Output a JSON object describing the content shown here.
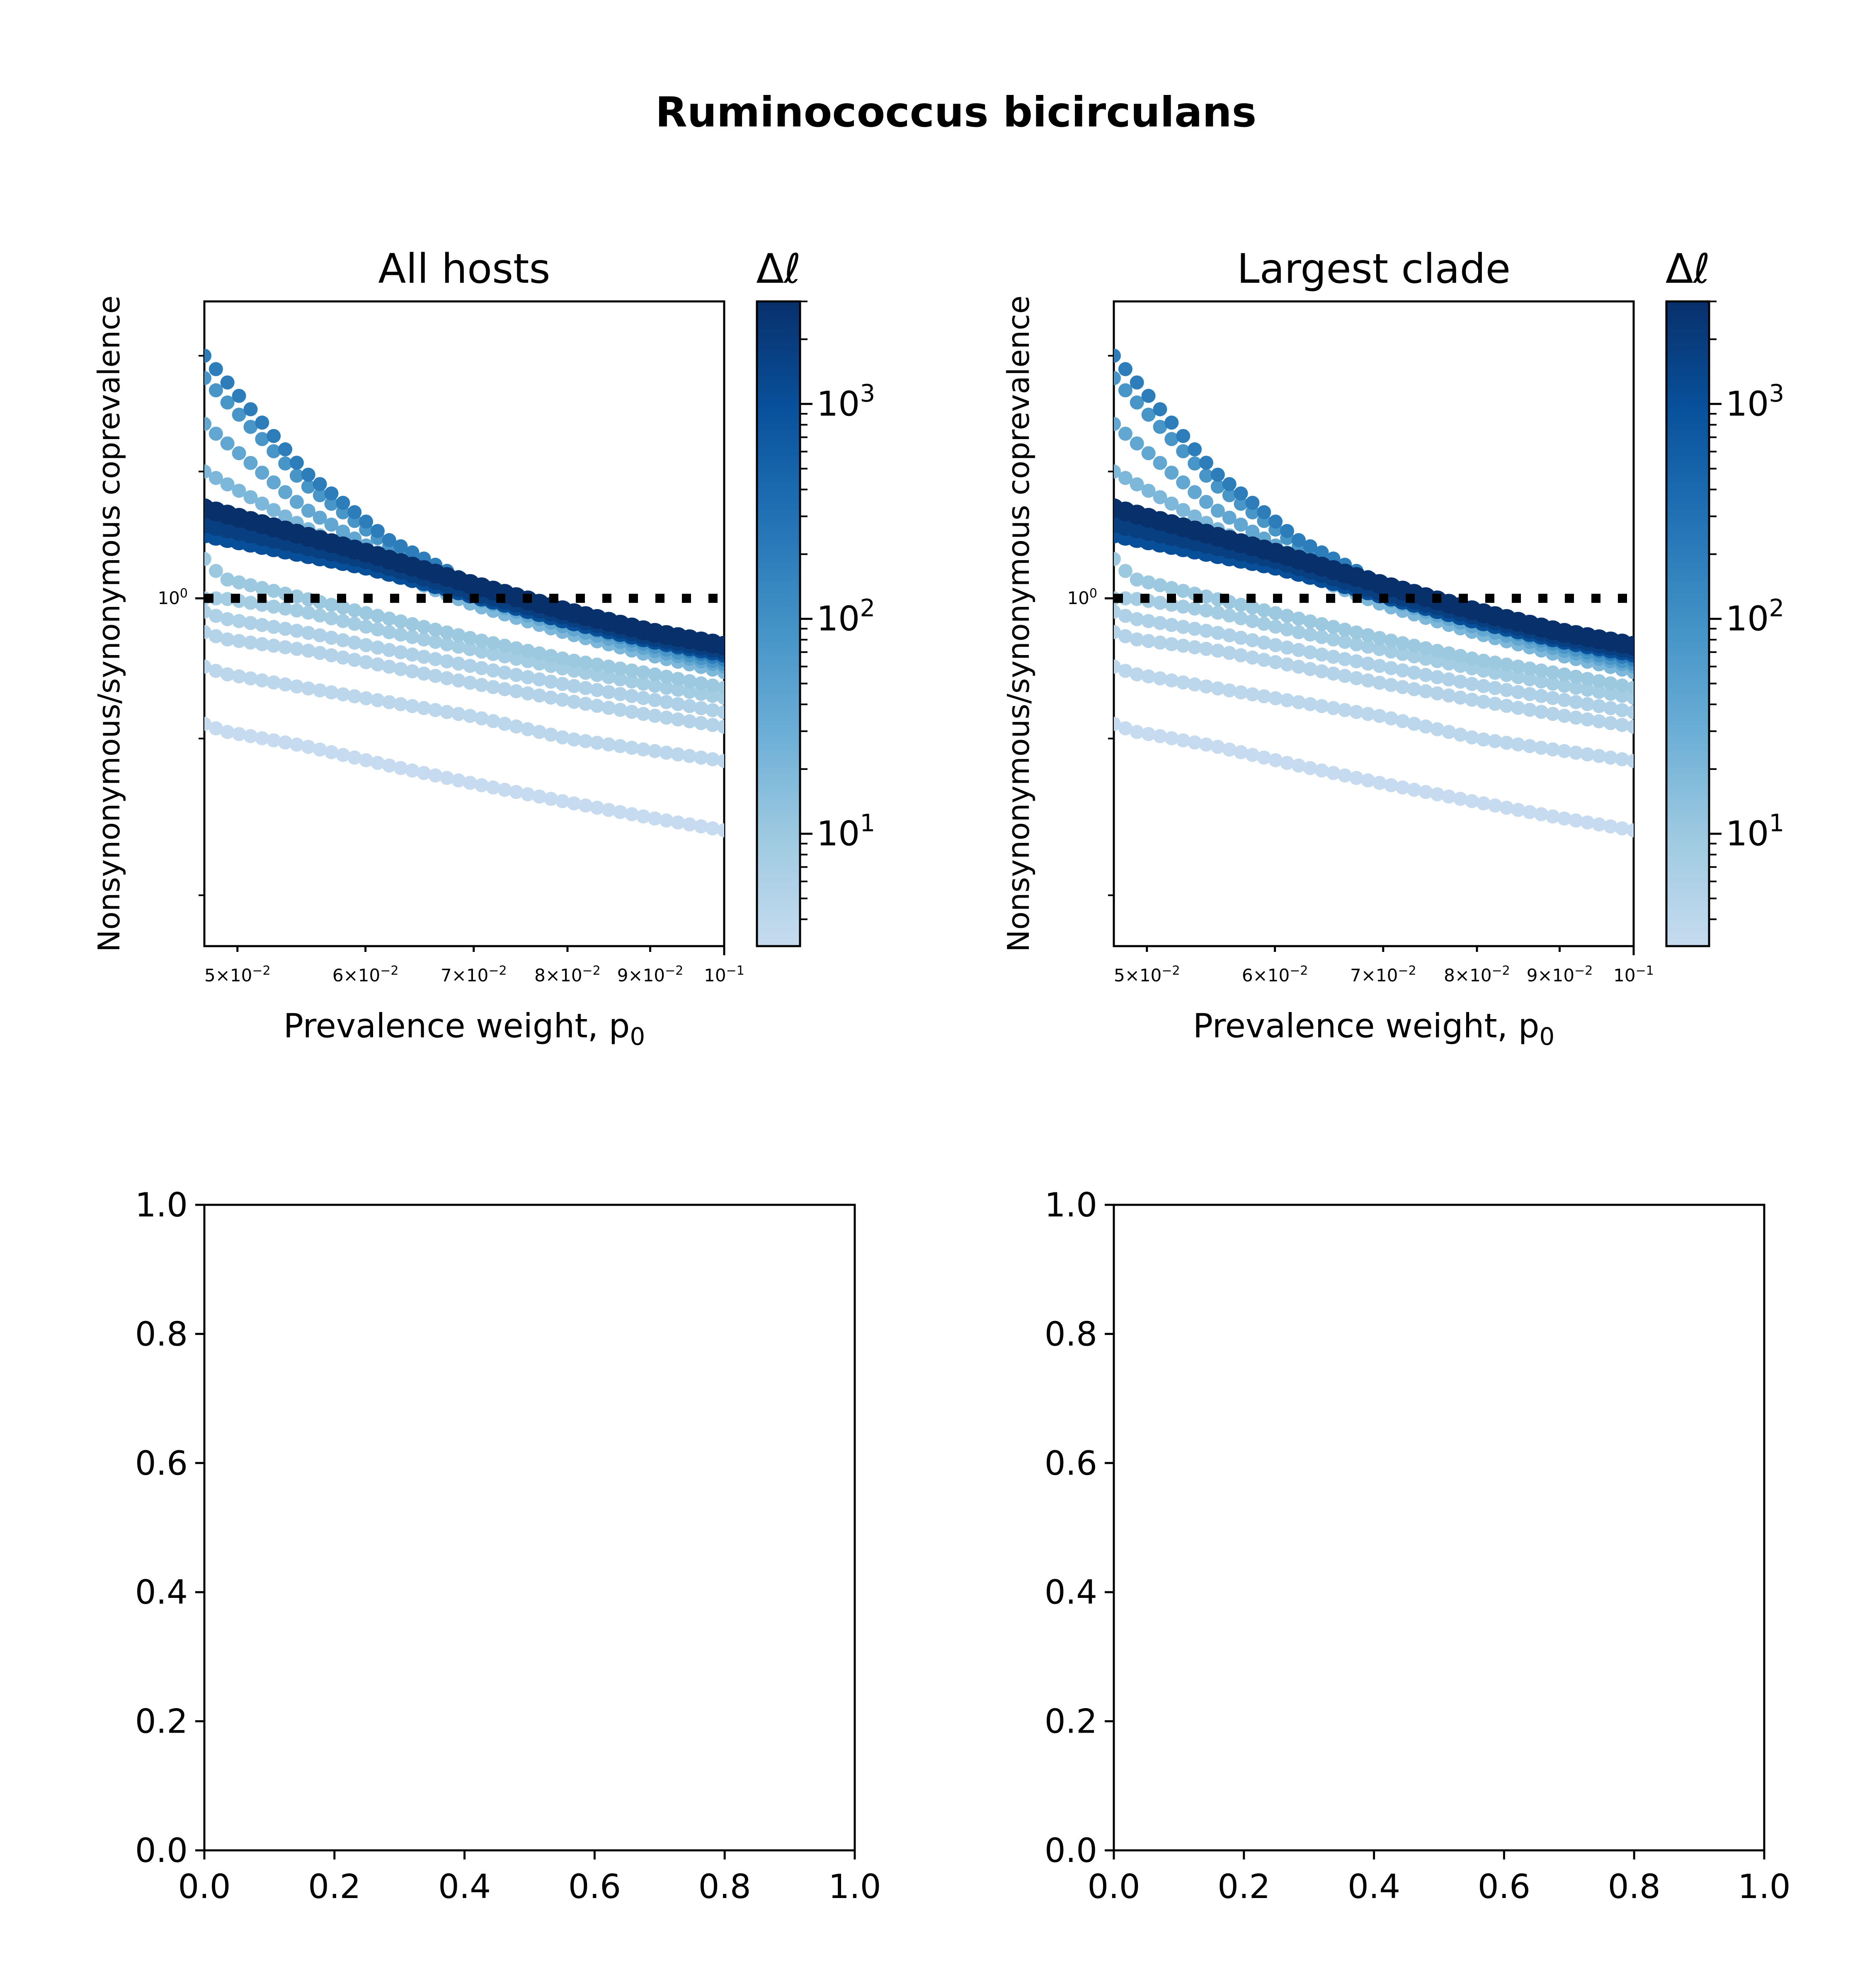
{
  "figure": {
    "suptitle": "Ruminococcus bicirculans"
  },
  "chart_data": [
    {
      "type": "scatter",
      "title": "All hosts",
      "xlabel": "Prevalence weight, p",
      "xlabel_sub": "0",
      "ylabel": "Nonsynonymous/synonymous coprevalence",
      "xscale": "log",
      "yscale": "log",
      "xlim": [
        0.0477,
        0.1
      ],
      "ylim": [
        0.77,
        1.25
      ],
      "x_ticks": [
        {
          "mant": "5",
          "exp": "−2"
        },
        {
          "mant": "6",
          "exp": "−2"
        },
        {
          "mant": "7",
          "exp": "−2"
        },
        {
          "mant": "8",
          "exp": "−2"
        },
        {
          "mant": "9",
          "exp": "−2"
        },
        {
          "mant": "",
          "exp": "−1"
        }
      ],
      "y_ticks": [
        {
          "base": "10",
          "exp": "0"
        }
      ],
      "reference_line": {
        "y": 1.0,
        "style": "dotted",
        "color": "#000000"
      },
      "colorbar": {
        "label": "Δℓ",
        "scale": "log",
        "range": [
          3,
          3000
        ],
        "cmap": [
          "#c6dbef",
          "#9ecae1",
          "#6baed6",
          "#4292c6",
          "#2171b5",
          "#08519c",
          "#08306b"
        ],
        "ticks": [
          {
            "base": "10",
            "exp": "1"
          },
          {
            "base": "10",
            "exp": "2"
          },
          {
            "base": "10",
            "exp": "3"
          }
        ]
      },
      "series": [
        {
          "delta": 3000,
          "points": [
            [
              0.0477,
              1.07
            ],
            [
              0.06,
              1.035
            ],
            [
              0.07,
              1.01
            ],
            [
              0.08,
              0.99
            ],
            [
              0.09,
              0.975
            ],
            [
              0.1,
              0.965
            ]
          ]
        },
        {
          "delta": 1800,
          "points": [
            [
              0.0477,
              1.058
            ],
            [
              0.06,
              1.03
            ],
            [
              0.07,
              1.005
            ],
            [
              0.08,
              0.987
            ],
            [
              0.09,
              0.972
            ],
            [
              0.1,
              0.962
            ]
          ]
        },
        {
          "delta": 1000,
          "points": [
            [
              0.0477,
              1.05
            ],
            [
              0.06,
              1.025
            ],
            [
              0.07,
              1.003
            ],
            [
              0.08,
              0.984
            ],
            [
              0.09,
              0.97
            ],
            [
              0.1,
              0.96
            ]
          ]
        },
        {
          "delta": 200,
          "points": [
            [
              0.0477,
              1.2
            ],
            [
              0.055,
              1.1
            ],
            [
              0.062,
              1.045
            ],
            [
              0.07,
              1.01
            ],
            [
              0.08,
              0.985
            ],
            [
              0.09,
              0.968
            ],
            [
              0.1,
              0.955
            ]
          ]
        },
        {
          "delta": 80,
          "points": [
            [
              0.0477,
              1.18
            ],
            [
              0.055,
              1.09
            ],
            [
              0.062,
              1.04
            ],
            [
              0.07,
              1.005
            ],
            [
              0.08,
              0.982
            ],
            [
              0.09,
              0.965
            ],
            [
              0.1,
              0.952
            ]
          ]
        },
        {
          "delta": 40,
          "points": [
            [
              0.0477,
              1.14
            ],
            [
              0.055,
              1.07
            ],
            [
              0.062,
              1.03
            ],
            [
              0.07,
              1.0
            ],
            [
              0.08,
              0.978
            ],
            [
              0.09,
              0.962
            ],
            [
              0.1,
              0.95
            ]
          ]
        },
        {
          "delta": 20,
          "points": [
            [
              0.0477,
              1.1
            ],
            [
              0.055,
              1.055
            ],
            [
              0.062,
              1.02
            ],
            [
              0.07,
              0.995
            ],
            [
              0.08,
              0.974
            ],
            [
              0.09,
              0.958
            ],
            [
              0.1,
              0.946
            ]
          ]
        },
        {
          "delta": 10,
          "points": [
            [
              0.0477,
              1.03
            ],
            [
              0.049,
              1.015
            ],
            [
              0.055,
              1.0
            ],
            [
              0.062,
              0.985
            ],
            [
              0.07,
              0.97
            ],
            [
              0.08,
              0.955
            ],
            [
              0.09,
              0.945
            ],
            [
              0.1,
              0.935
            ]
          ]
        },
        {
          "delta": 8,
          "points": [
            [
              0.0477,
              1.0
            ],
            [
              0.049,
              1.0
            ],
            [
              0.055,
              0.99
            ],
            [
              0.062,
              0.975
            ],
            [
              0.07,
              0.962
            ],
            [
              0.08,
              0.948
            ],
            [
              0.09,
              0.937
            ],
            [
              0.1,
              0.928
            ]
          ]
        },
        {
          "delta": 6,
          "points": [
            [
              0.0477,
              0.99
            ],
            [
              0.049,
              0.985
            ],
            [
              0.055,
              0.975
            ],
            [
              0.062,
              0.962
            ],
            [
              0.07,
              0.95
            ],
            [
              0.08,
              0.937
            ],
            [
              0.09,
              0.927
            ],
            [
              0.1,
              0.918
            ]
          ]
        },
        {
          "delta": 5,
          "points": [
            [
              0.0477,
              0.975
            ],
            [
              0.049,
              0.97
            ],
            [
              0.055,
              0.962
            ],
            [
              0.062,
              0.95
            ],
            [
              0.07,
              0.938
            ],
            [
              0.08,
              0.926
            ],
            [
              0.09,
              0.916
            ],
            [
              0.1,
              0.908
            ]
          ]
        },
        {
          "delta": 4,
          "points": [
            [
              0.0477,
              0.95
            ],
            [
              0.049,
              0.945
            ],
            [
              0.055,
              0.935
            ],
            [
              0.062,
              0.925
            ],
            [
              0.07,
              0.915
            ],
            [
              0.08,
              0.9
            ],
            [
              0.09,
              0.892
            ],
            [
              0.1,
              0.885
            ]
          ]
        },
        {
          "delta": 3,
          "points": [
            [
              0.0477,
              0.91
            ],
            [
              0.049,
              0.905
            ],
            [
              0.055,
              0.895
            ],
            [
              0.062,
              0.882
            ],
            [
              0.07,
              0.87
            ],
            [
              0.08,
              0.858
            ],
            [
              0.09,
              0.848
            ],
            [
              0.1,
              0.84
            ]
          ]
        }
      ]
    },
    {
      "type": "scatter",
      "title": "Largest clade",
      "xlabel": "Prevalence weight, p",
      "xlabel_sub": "0",
      "ylabel": "Nonsynonymous/synonymous coprevalence",
      "xscale": "log",
      "yscale": "log",
      "xlim": [
        0.0477,
        0.1
      ],
      "ylim": [
        0.77,
        1.25
      ],
      "x_ticks": [
        {
          "mant": "5",
          "exp": "−2"
        },
        {
          "mant": "6",
          "exp": "−2"
        },
        {
          "mant": "7",
          "exp": "−2"
        },
        {
          "mant": "8",
          "exp": "−2"
        },
        {
          "mant": "9",
          "exp": "−2"
        },
        {
          "mant": "",
          "exp": "−1"
        }
      ],
      "y_ticks": [
        {
          "base": "10",
          "exp": "0"
        }
      ],
      "reference_line": {
        "y": 1.0,
        "style": "dotted",
        "color": "#000000"
      },
      "colorbar": {
        "label": "Δℓ",
        "scale": "log",
        "range": [
          3,
          3000
        ],
        "cmap": [
          "#c6dbef",
          "#9ecae1",
          "#6baed6",
          "#4292c6",
          "#2171b5",
          "#08519c",
          "#08306b"
        ],
        "ticks": [
          {
            "base": "10",
            "exp": "1"
          },
          {
            "base": "10",
            "exp": "2"
          },
          {
            "base": "10",
            "exp": "3"
          }
        ]
      },
      "series": [
        {
          "delta": 3000,
          "points": [
            [
              0.0477,
              1.07
            ],
            [
              0.06,
              1.035
            ],
            [
              0.07,
              1.01
            ],
            [
              0.08,
              0.99
            ],
            [
              0.09,
              0.975
            ],
            [
              0.1,
              0.965
            ]
          ]
        },
        {
          "delta": 1800,
          "points": [
            [
              0.0477,
              1.058
            ],
            [
              0.06,
              1.03
            ],
            [
              0.07,
              1.005
            ],
            [
              0.08,
              0.987
            ],
            [
              0.09,
              0.972
            ],
            [
              0.1,
              0.962
            ]
          ]
        },
        {
          "delta": 1000,
          "points": [
            [
              0.0477,
              1.05
            ],
            [
              0.06,
              1.025
            ],
            [
              0.07,
              1.003
            ],
            [
              0.08,
              0.984
            ],
            [
              0.09,
              0.97
            ],
            [
              0.1,
              0.96
            ]
          ]
        },
        {
          "delta": 200,
          "points": [
            [
              0.0477,
              1.2
            ],
            [
              0.055,
              1.1
            ],
            [
              0.062,
              1.045
            ],
            [
              0.07,
              1.01
            ],
            [
              0.08,
              0.985
            ],
            [
              0.09,
              0.968
            ],
            [
              0.1,
              0.955
            ]
          ]
        },
        {
          "delta": 80,
          "points": [
            [
              0.0477,
              1.18
            ],
            [
              0.055,
              1.09
            ],
            [
              0.062,
              1.04
            ],
            [
              0.07,
              1.005
            ],
            [
              0.08,
              0.982
            ],
            [
              0.09,
              0.965
            ],
            [
              0.1,
              0.952
            ]
          ]
        },
        {
          "delta": 40,
          "points": [
            [
              0.0477,
              1.14
            ],
            [
              0.055,
              1.07
            ],
            [
              0.062,
              1.03
            ],
            [
              0.07,
              1.0
            ],
            [
              0.08,
              0.978
            ],
            [
              0.09,
              0.962
            ],
            [
              0.1,
              0.95
            ]
          ]
        },
        {
          "delta": 20,
          "points": [
            [
              0.0477,
              1.1
            ],
            [
              0.055,
              1.055
            ],
            [
              0.062,
              1.02
            ],
            [
              0.07,
              0.995
            ],
            [
              0.08,
              0.974
            ],
            [
              0.09,
              0.958
            ],
            [
              0.1,
              0.946
            ]
          ]
        },
        {
          "delta": 10,
          "points": [
            [
              0.0477,
              1.03
            ],
            [
              0.049,
              1.015
            ],
            [
              0.055,
              1.0
            ],
            [
              0.062,
              0.985
            ],
            [
              0.07,
              0.97
            ],
            [
              0.08,
              0.955
            ],
            [
              0.09,
              0.945
            ],
            [
              0.1,
              0.935
            ]
          ]
        },
        {
          "delta": 8,
          "points": [
            [
              0.0477,
              1.0
            ],
            [
              0.049,
              1.0
            ],
            [
              0.055,
              0.99
            ],
            [
              0.062,
              0.975
            ],
            [
              0.07,
              0.962
            ],
            [
              0.08,
              0.948
            ],
            [
              0.09,
              0.937
            ],
            [
              0.1,
              0.928
            ]
          ]
        },
        {
          "delta": 6,
          "points": [
            [
              0.0477,
              0.99
            ],
            [
              0.049,
              0.985
            ],
            [
              0.055,
              0.975
            ],
            [
              0.062,
              0.962
            ],
            [
              0.07,
              0.95
            ],
            [
              0.08,
              0.937
            ],
            [
              0.09,
              0.927
            ],
            [
              0.1,
              0.918
            ]
          ]
        },
        {
          "delta": 5,
          "points": [
            [
              0.0477,
              0.975
            ],
            [
              0.049,
              0.97
            ],
            [
              0.055,
              0.962
            ],
            [
              0.062,
              0.95
            ],
            [
              0.07,
              0.938
            ],
            [
              0.08,
              0.926
            ],
            [
              0.09,
              0.916
            ],
            [
              0.1,
              0.908
            ]
          ]
        },
        {
          "delta": 4,
          "points": [
            [
              0.0477,
              0.95
            ],
            [
              0.049,
              0.945
            ],
            [
              0.055,
              0.935
            ],
            [
              0.062,
              0.925
            ],
            [
              0.07,
              0.915
            ],
            [
              0.08,
              0.9
            ],
            [
              0.09,
              0.892
            ],
            [
              0.1,
              0.885
            ]
          ]
        },
        {
          "delta": 3,
          "points": [
            [
              0.0477,
              0.91
            ],
            [
              0.049,
              0.905
            ],
            [
              0.055,
              0.895
            ],
            [
              0.062,
              0.882
            ],
            [
              0.07,
              0.87
            ],
            [
              0.08,
              0.858
            ],
            [
              0.09,
              0.848
            ],
            [
              0.1,
              0.84
            ]
          ]
        }
      ]
    },
    {
      "type": "scatter",
      "title": "",
      "xlim": [
        0.0,
        1.0
      ],
      "ylim": [
        0.0,
        1.0
      ],
      "x_ticks": [
        "0.0",
        "0.2",
        "0.4",
        "0.6",
        "0.8",
        "1.0"
      ],
      "y_ticks": [
        "0.0",
        "0.2",
        "0.4",
        "0.6",
        "0.8",
        "1.0"
      ],
      "series": []
    },
    {
      "type": "scatter",
      "title": "",
      "xlim": [
        0.0,
        1.0
      ],
      "ylim": [
        0.0,
        1.0
      ],
      "x_ticks": [
        "0.0",
        "0.2",
        "0.4",
        "0.6",
        "0.8",
        "1.0"
      ],
      "y_ticks": [
        "0.0",
        "0.2",
        "0.4",
        "0.6",
        "0.8",
        "1.0"
      ],
      "series": []
    }
  ]
}
